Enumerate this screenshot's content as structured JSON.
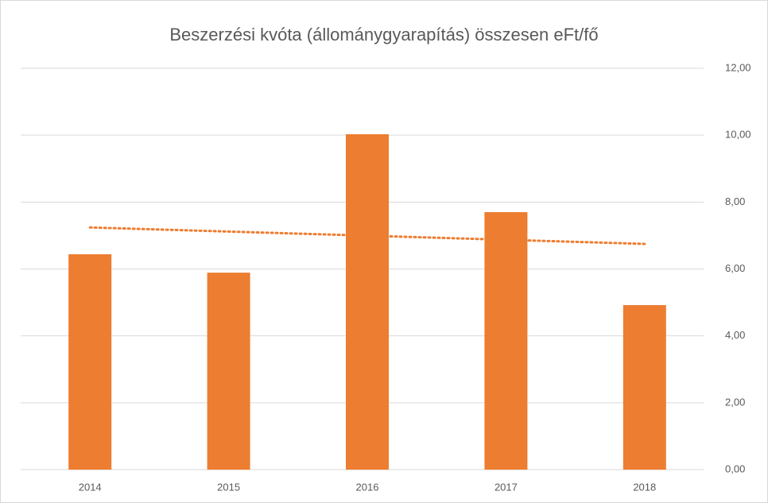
{
  "chart_data": {
    "type": "bar",
    "title": "Beszerzési kvóta (állománygyarapítás) összesen eFt/fő",
    "categories": [
      "2014",
      "2015",
      "2016",
      "2017",
      "2018"
    ],
    "values": [
      6.44,
      5.89,
      10.03,
      7.7,
      4.92
    ],
    "color": "#ed7d31",
    "ylim": [
      0,
      12
    ],
    "yticks": [
      {
        "value": 0,
        "label": "0,00"
      },
      {
        "value": 2,
        "label": "2,00"
      },
      {
        "value": 4,
        "label": "4,00"
      },
      {
        "value": 6,
        "label": "6,00"
      },
      {
        "value": 8,
        "label": "8,00"
      },
      {
        "value": 10,
        "label": "10,00"
      },
      {
        "value": 12,
        "label": "12,00"
      }
    ],
    "y_axis_side": "right",
    "grid": true,
    "trendline": "linear"
  }
}
